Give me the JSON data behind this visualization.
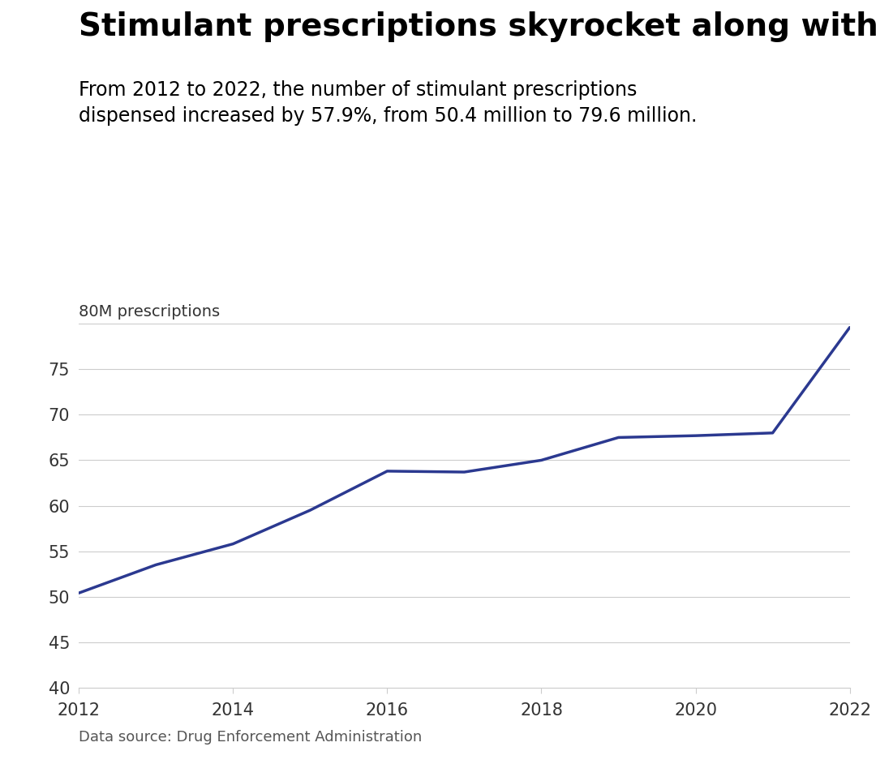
{
  "title": "Stimulant prescriptions skyrocket along with ADHD",
  "subtitle": "From 2012 to 2022, the number of stimulant prescriptions\ndispensed increased by 57.9%, from 50.4 million to 79.6 million.",
  "footnote": "Data source: Drug Enforcement Administration",
  "years": [
    2012,
    2013,
    2014,
    2015,
    2016,
    2017,
    2018,
    2019,
    2020,
    2021,
    2022
  ],
  "values": [
    50.4,
    53.5,
    55.8,
    59.5,
    63.8,
    63.7,
    65.0,
    67.5,
    67.7,
    68.0,
    79.6
  ],
  "line_color": "#2b3990",
  "line_width": 2.5,
  "ylim": [
    40,
    82
  ],
  "yticks": [
    40,
    45,
    50,
    55,
    60,
    65,
    70,
    75,
    80
  ],
  "ylabel_top": "80M prescriptions",
  "xlim": [
    2012,
    2022
  ],
  "xticks": [
    2012,
    2014,
    2016,
    2018,
    2020,
    2022
  ],
  "grid_color": "#cccccc",
  "background_color": "#ffffff",
  "title_fontsize": 28,
  "subtitle_fontsize": 17,
  "footnote_fontsize": 13,
  "tick_fontsize": 15
}
